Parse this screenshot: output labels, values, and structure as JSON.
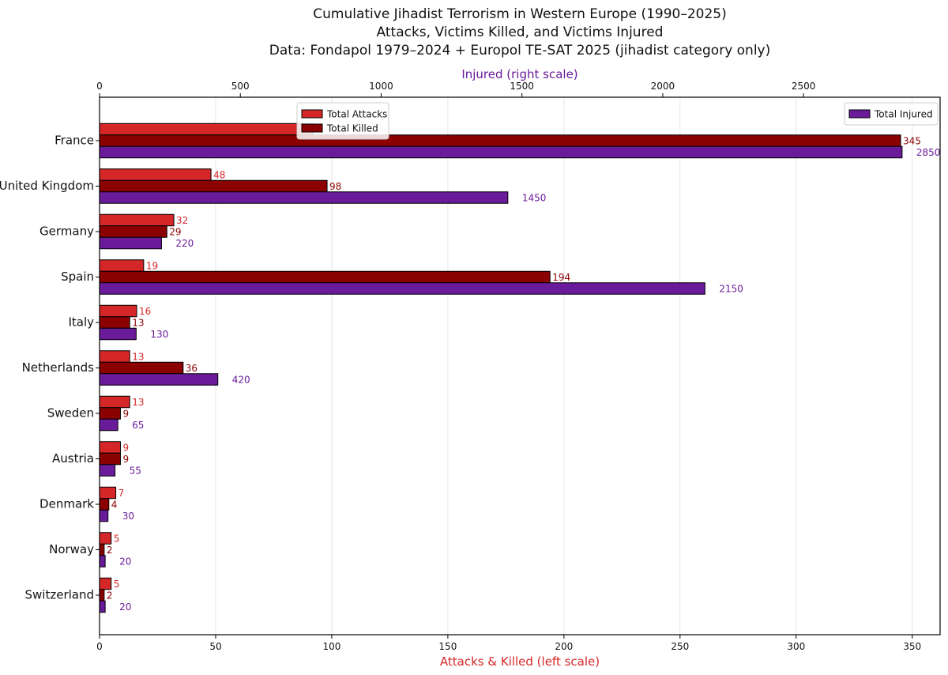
{
  "chart_data": {
    "type": "bar",
    "orientation": "horizontal",
    "title_lines": [
      "Cumulative Jihadist Terrorism in Western Europe (1990–2025)",
      "Attacks, Victims Killed, and Victims Injured",
      "Data: Fondapol 1979–2024 + Europol TE-SAT 2025 (jihadist category only)"
    ],
    "categories": [
      "France",
      "United Kingdom",
      "Germany",
      "Spain",
      "Italy",
      "Netherlands",
      "Sweden",
      "Austria",
      "Denmark",
      "Norway",
      "Switzerland"
    ],
    "series": [
      {
        "name": "Total Attacks",
        "axis": "bottom",
        "color": "#d62728",
        "label_color": "#d62728",
        "values": [
          92,
          48,
          32,
          19,
          16,
          13,
          13,
          9,
          7,
          5,
          5
        ],
        "labels": [
          "",
          "48",
          "32",
          "19",
          "16",
          "13",
          "13",
          "9",
          "7",
          "5",
          "5"
        ]
      },
      {
        "name": "Total Killed",
        "axis": "bottom",
        "color": "#8b0000",
        "label_color": "#8b0000",
        "values": [
          345,
          98,
          29,
          194,
          13,
          36,
          9,
          9,
          4,
          2,
          2
        ],
        "labels": [
          "345",
          "98",
          "29",
          "194",
          "13",
          "36",
          "9",
          "9",
          "4",
          "2",
          "2"
        ]
      },
      {
        "name": "Total Injured",
        "axis": "top",
        "color": "#6a1b9a",
        "label_color": "#6a1b9a",
        "values": [
          2850,
          1450,
          220,
          2150,
          130,
          420,
          65,
          55,
          30,
          20,
          20
        ],
        "labels": [
          "2850",
          "1450",
          "220",
          "2150",
          "130",
          "420",
          "65",
          "55",
          "30",
          "20",
          "20"
        ]
      }
    ],
    "bottom_axis": {
      "label": "Attacks & Killed (left scale)",
      "color": "#d62728",
      "range": [
        0,
        362
      ],
      "ticks": [
        0,
        50,
        100,
        150,
        200,
        250,
        300,
        350
      ]
    },
    "top_axis": {
      "label": "Injured (right scale)",
      "color": "#6a1b9a",
      "range": [
        0,
        2985
      ],
      "ticks": [
        0,
        500,
        1000,
        1500,
        2000,
        2500
      ]
    },
    "grid": "vertical",
    "legends": [
      {
        "placement": "top-center",
        "entries": [
          "Total Attacks",
          "Total Killed"
        ]
      },
      {
        "placement": "top-right",
        "entries": [
          "Total Injured"
        ]
      }
    ]
  }
}
